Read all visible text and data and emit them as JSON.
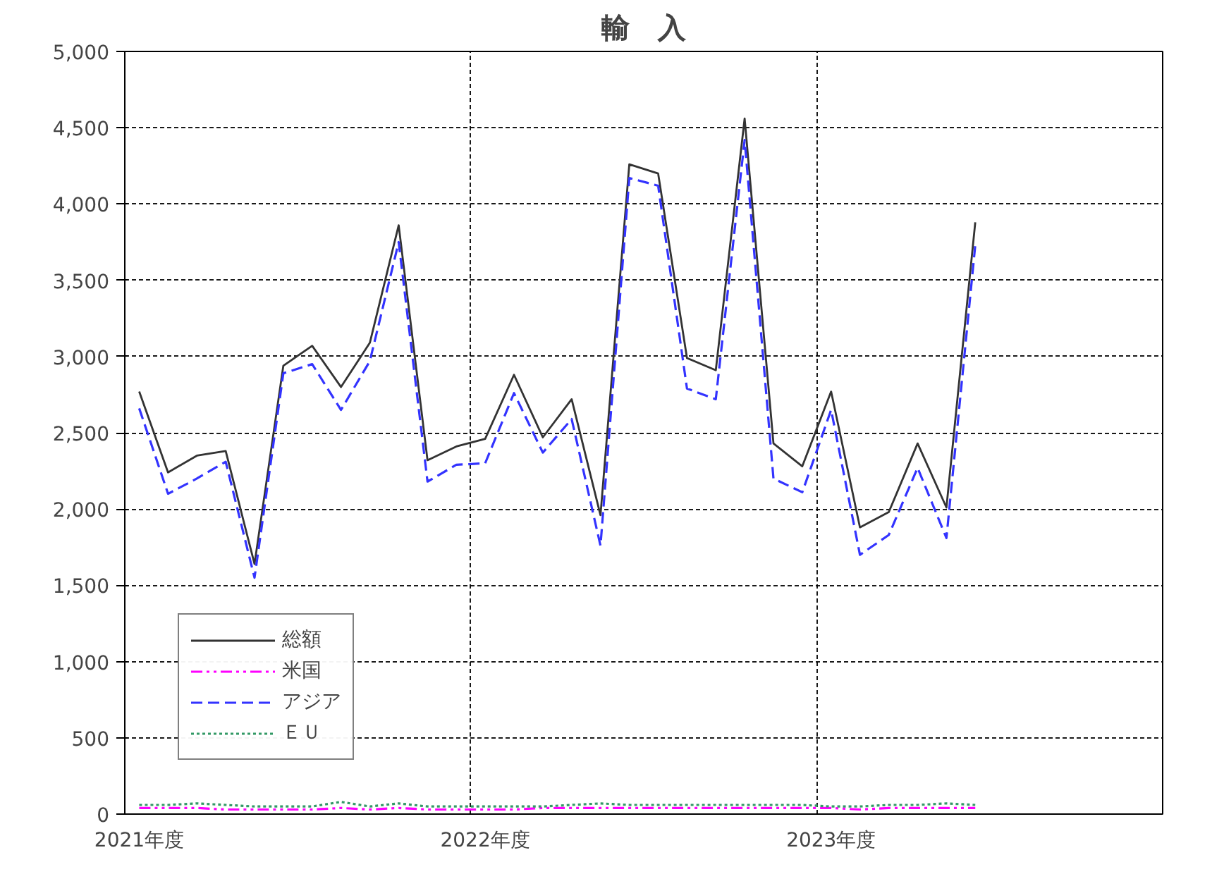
{
  "chart_data": {
    "type": "line",
    "title": "輸　入",
    "categories": [
      "2021年度",
      null,
      null,
      null,
      null,
      null,
      null,
      null,
      null,
      null,
      null,
      null,
      "2022年度",
      null,
      null,
      null,
      null,
      null,
      null,
      null,
      null,
      null,
      null,
      null,
      "2023年度",
      null,
      null,
      null,
      null,
      null,
      null,
      null,
      null,
      null,
      null,
      null
    ],
    "series": [
      {
        "name": "総額",
        "color": "#333333",
        "line_style": "solid",
        "values": [
          2770,
          2240,
          2350,
          2380,
          1640,
          2940,
          3070,
          2800,
          3090,
          3860,
          2320,
          2410,
          2460,
          2880,
          2470,
          2720,
          1960,
          4260,
          4200,
          2990,
          2910,
          4560,
          2430,
          2280,
          2770,
          1880,
          1980,
          2430,
          2010,
          3880,
          null,
          null,
          null,
          null,
          null,
          null
        ]
      },
      {
        "name": "米国",
        "color": "#ff00ff",
        "line_style": "dashdot",
        "values": [
          40,
          40,
          40,
          30,
          30,
          30,
          30,
          40,
          30,
          40,
          30,
          30,
          30,
          30,
          40,
          40,
          40,
          40,
          40,
          40,
          40,
          40,
          40,
          40,
          40,
          30,
          40,
          40,
          40,
          40,
          null,
          null,
          null,
          null,
          null,
          null
        ]
      },
      {
        "name": "アジア",
        "color": "#3333ff",
        "line_style": "dashed",
        "values": [
          2660,
          2100,
          2200,
          2310,
          1550,
          2890,
          2950,
          2650,
          2970,
          3750,
          2180,
          2290,
          2300,
          2760,
          2370,
          2590,
          1760,
          4170,
          4120,
          2790,
          2720,
          4420,
          2200,
          2110,
          2650,
          1700,
          1830,
          2270,
          1810,
          3730,
          null,
          null,
          null,
          null,
          null,
          null
        ]
      },
      {
        "name": "ＥＵ",
        "color": "#339966",
        "line_style": "dotted",
        "values": [
          60,
          60,
          70,
          60,
          50,
          50,
          50,
          80,
          50,
          70,
          50,
          50,
          50,
          50,
          50,
          60,
          70,
          60,
          60,
          60,
          60,
          60,
          60,
          60,
          50,
          50,
          60,
          60,
          70,
          60,
          null,
          null,
          null,
          null,
          null,
          null
        ]
      }
    ],
    "ylim": [
      0,
      5000
    ],
    "yticks": [
      0,
      {
        "value": 500,
        "label": "500"
      },
      {
        "value": 1000,
        "label": "1,000"
      },
      {
        "value": 1500,
        "label": "1,500"
      },
      {
        "value": 2000,
        "label": "2,000"
      },
      {
        "value": 2500,
        "label": "2,500"
      },
      {
        "value": 3000,
        "label": "3,000"
      },
      {
        "value": 3500,
        "label": "3,500"
      },
      {
        "value": 4000,
        "label": "4,000"
      },
      {
        "value": 4500,
        "label": "4,500"
      },
      {
        "value": 5000,
        "label": "5,000"
      }
    ],
    "grid": true,
    "legend": "bottom left",
    "marker": "none"
  }
}
